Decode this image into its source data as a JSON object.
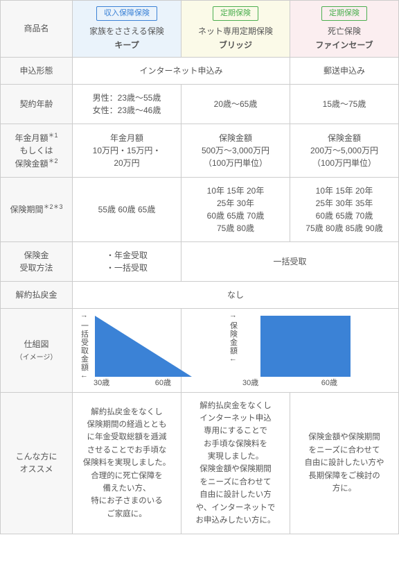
{
  "headers": {
    "productName": "商品名",
    "applyMethod": "申込形態",
    "contractAge": "契約年齢",
    "amountLabel": "年金月額",
    "amountSup1": "＊1",
    "amountOr": "もしくは",
    "amountLabel2": "保険金額",
    "amountSup2": "＊2",
    "periodLabel": "保険期間",
    "periodSup": "＊2＊3",
    "payoutMethod": "保険金\n受取方法",
    "surrender": "解約払戻金",
    "diagram": "仕組図",
    "diagramSub": "（イメージ）",
    "recommend": "こんな方に\nオススメ"
  },
  "products": [
    {
      "tag": "収入保障保険",
      "tagClass": "tag-blue",
      "bg": "bg-blue",
      "line1": "家族をささえる保険",
      "line2": "キープ"
    },
    {
      "tag": "定期保険",
      "tagClass": "tag-green",
      "bg": "bg-yellow",
      "line1": "ネット専用定期保険",
      "line2": "ブリッジ"
    },
    {
      "tag": "定期保険",
      "tagClass": "tag-green",
      "bg": "bg-pink",
      "line1": "死亡保険",
      "line2": "ファインセーブ"
    }
  ],
  "apply": {
    "internet": "インターネット申込み",
    "mail": "郵送申込み"
  },
  "age": {
    "p1": "男性：23歳～55歳\n女性：23歳～46歳",
    "p2": "20歳～65歳",
    "p3": "15歳～75歳"
  },
  "amount": {
    "p1": "年金月額\n10万円・15万円・\n20万円",
    "p2": "保険金額\n500万～3,000万円\n（100万円単位）",
    "p3": "保険金額\n200万～5,000万円\n（100万円単位）"
  },
  "period": {
    "p1": "55歳 60歳 65歳",
    "p2": "10年 15年 20年\n25年 30年\n60歳 65歳 70歳\n75歳 80歳",
    "p3": "10年 15年 20年\n25年 30年 35年\n60歳 65歳 70歳\n75歳 80歳 85歳 90歳"
  },
  "payout": {
    "p1": "・年金受取\n・一括受取",
    "merged": "一括受取"
  },
  "surrender": "なし",
  "diagram": {
    "left": {
      "ylabel": "↑ 一括受取金額 ↓",
      "xmin": "30歳",
      "xmax": "60歳",
      "shape": "triangle",
      "color": "#3b82d6"
    },
    "right": {
      "ylabel": "↑ 保険金額 ↓",
      "xmin": "30歳",
      "xmax": "60歳",
      "shape": "rect",
      "color": "#3b82d6"
    }
  },
  "recommend": {
    "p1": "解約払戻金をなくし\n保険期間の経過ととも\nに年金受取総額を逓減\nさせることでお手頃な\n保険料を実現しました。\n合理的に死亡保障を\n備えたい方、\n特にお子さまのいる\nご家庭に。",
    "p2": "解約払戻金をなくし\nインターネット申込\n専用にすることで\nお手頃な保険料を\n実現しました。\n保険金額や保険期間\nをニーズに合わせて\n自由に設計したい方\nや、インターネットで\nお申込みしたい方に。",
    "p3": "保険金額や保険期間\nをニーズに合わせて\n自由に設計したい方や\n長期保障をご検討の\n方に。"
  }
}
